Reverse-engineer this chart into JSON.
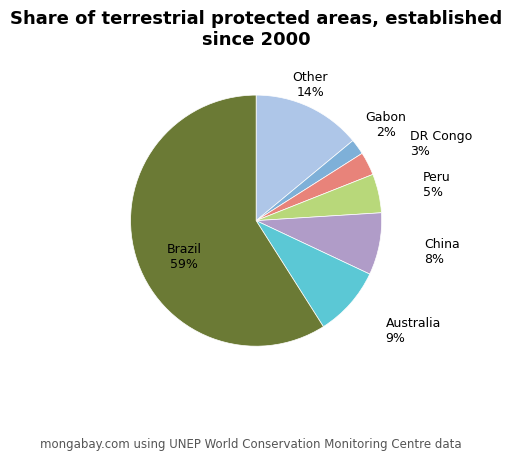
{
  "title": "Share of terrestrial protected areas, established\nsince 2000",
  "caption": "mongabay.com using UNEP World Conservation Monitoring Centre data",
  "slices": [
    {
      "label": "Other",
      "pct": 14,
      "color": "#aec6e8"
    },
    {
      "label": "Gabon",
      "pct": 2,
      "color": "#7eb0d8"
    },
    {
      "label": "DR Congo",
      "pct": 3,
      "color": "#e8837a"
    },
    {
      "label": "Peru",
      "pct": 5,
      "color": "#b8d87a"
    },
    {
      "label": "China",
      "pct": 8,
      "color": "#b09cc8"
    },
    {
      "label": "Australia",
      "pct": 9,
      "color": "#5bc8d5"
    },
    {
      "label": "Brazil",
      "pct": 59,
      "color": "#6b7a35"
    }
  ],
  "title_fontsize": 13,
  "label_fontsize": 9,
  "caption_fontsize": 8.5,
  "background_color": "#ffffff",
  "startangle": 90
}
